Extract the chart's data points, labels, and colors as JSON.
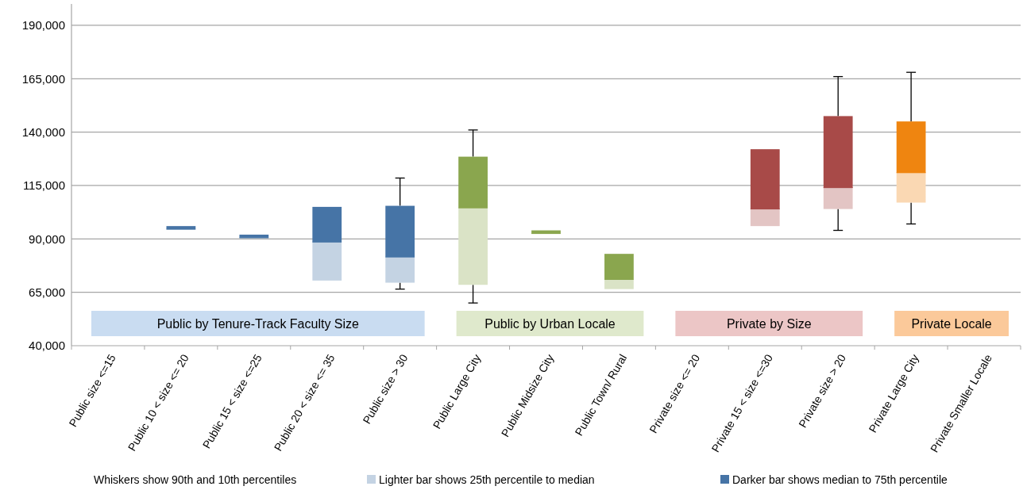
{
  "chart_data": {
    "type": "box",
    "categories": [
      "Public size <=15",
      "Public 10 < size <= 20",
      "Public 15 < size <=25",
      "Public 20 < size <= 35",
      "Public size > 30",
      "Public Large City",
      "Public Midsize City",
      "Public Town/ Rural",
      "Private size <= 20",
      "Private 15 < size <=30",
      "Private size > 20",
      "Private Large City",
      "Private Smaller Locale"
    ],
    "series": [
      {
        "colors": [
          null,
          "#4674a6",
          "#4674a6",
          "#4674a6",
          "#4674a6",
          "#8aa64e",
          "#8aa64e",
          "#8aa64e",
          null,
          "#a84a48",
          "#a84a48",
          "#ef8510",
          null
        ],
        "boxes": [
          null,
          {
            "low": null,
            "q1": 94500,
            "median": 94500,
            "q3": 96000,
            "high": null
          },
          {
            "low": null,
            "q1": 90500,
            "median": 90500,
            "q3": 92000,
            "high": null
          },
          {
            "low": null,
            "q1": 70500,
            "median": 88500,
            "q3": 105000,
            "high": null
          },
          {
            "low": 66500,
            "q1": 69500,
            "median": 81500,
            "q3": 105500,
            "high": 118500
          },
          {
            "low": 60000,
            "q1": 68500,
            "median": 104500,
            "q3": 128500,
            "high": 141000
          },
          {
            "low": null,
            "q1": 92500,
            "median": 92500,
            "q3": 94000,
            "high": null
          },
          {
            "low": null,
            "q1": 66500,
            "median": 71000,
            "q3": 83000,
            "high": null
          },
          null,
          {
            "low": null,
            "q1": 96000,
            "median": 104000,
            "q3": 132000,
            "high": null
          },
          {
            "low": 94000,
            "q1": 104000,
            "median": 114000,
            "q3": 147500,
            "high": 166000
          },
          {
            "low": 97000,
            "q1": 107000,
            "median": 121000,
            "q3": 145000,
            "high": 168000
          },
          null
        ]
      }
    ],
    "ylim": [
      40000,
      200000
    ],
    "yticks": [
      {
        "value": 40000,
        "label": "40,000"
      },
      {
        "value": 65000,
        "label": "65,000"
      },
      {
        "value": 90000,
        "label": "90,000"
      },
      {
        "value": 115000,
        "label": "115,000"
      },
      {
        "value": 140000,
        "label": "140,000"
      },
      {
        "value": 165000,
        "label": "165,000"
      },
      {
        "value": 190000,
        "label": "190,000"
      }
    ],
    "grid": "y",
    "annotations": [
      "Public by Tenure-Track Faculty Size",
      "Public by Urban Locale",
      "Private by Size",
      "Private Locale",
      "Whiskers show 90th and 10th percentiles",
      "Lighter bar shows 25th percentile to median",
      "Darker bar shows median to 75th percentile"
    ]
  }
}
